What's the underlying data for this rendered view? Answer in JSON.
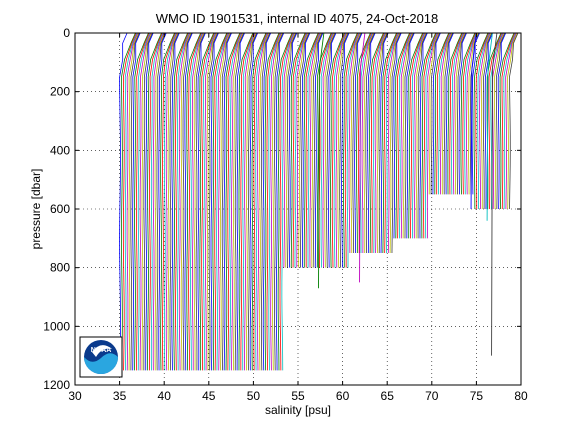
{
  "chart_data": {
    "type": "line",
    "title": "WMO ID 1901531, internal ID 4075, 24-Oct-2018",
    "xlabel": "salinity [psu]",
    "ylabel": "pressure [dbar]",
    "xlim": [
      30,
      80
    ],
    "ylim": [
      0,
      1200
    ],
    "y_reversed": true,
    "grid": true,
    "xticks": [
      "30",
      "35",
      "40",
      "45",
      "50",
      "55",
      "60",
      "65",
      "70",
      "75",
      "80"
    ],
    "yticks": [
      "0",
      "200",
      "400",
      "600",
      "800",
      "1000",
      "1200"
    ],
    "colors": [
      "#0000ff",
      "#008000",
      "#ff0000",
      "#00bfbf",
      "#bf00bf",
      "#bfbf00",
      "#404040"
    ],
    "profile_count": 210,
    "start_surface_salinity": 35.3,
    "end_surface_salinity": 79.0,
    "profile_depth_segments": [
      {
        "from_salinity": 35.0,
        "to_salinity": 53.5,
        "max_pressure": 1150
      },
      {
        "from_salinity": 53.5,
        "to_salinity": 58.0,
        "max_pressure": 800
      },
      {
        "from_salinity": 58.0,
        "to_salinity": 61.0,
        "max_pressure": 800
      },
      {
        "from_salinity": 61.0,
        "to_salinity": 66.0,
        "max_pressure": 750
      },
      {
        "from_salinity": 66.0,
        "to_salinity": 70.0,
        "max_pressure": 700
      },
      {
        "from_salinity": 70.0,
        "to_salinity": 75.0,
        "max_pressure": 550
      },
      {
        "from_salinity": 75.0,
        "to_salinity": 79.0,
        "max_pressure": 600
      }
    ],
    "logo": "NOAA"
  }
}
